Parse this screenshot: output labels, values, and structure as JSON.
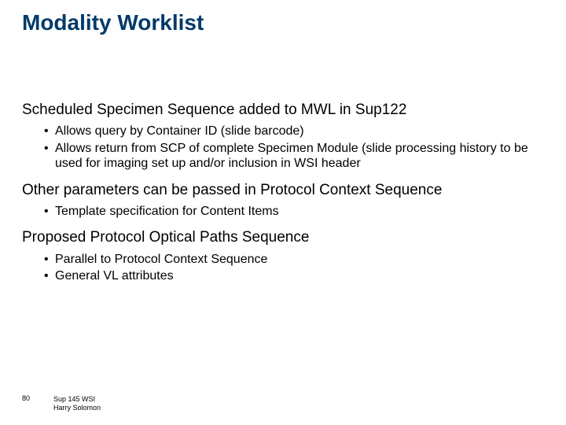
{
  "title": "Modality Worklist",
  "sections": [
    {
      "para": "Scheduled Specimen Sequence added to MWL in Sup122",
      "bullets": [
        "Allows query by Container ID (slide barcode)",
        "Allows return from SCP of complete Specimen Module (slide processing history to be used for imaging set up and/or inclusion in WSI header"
      ]
    },
    {
      "para": "Other parameters can be passed in Protocol Context Sequence",
      "bullets": [
        "Template specification for Content Items"
      ]
    },
    {
      "para": "Proposed Protocol Optical Paths Sequence",
      "bullets": [
        "Parallel to  Protocol Context Sequence",
        "General VL attributes"
      ]
    }
  ],
  "footer": {
    "page": "80",
    "line1": "Sup 145 WSI",
    "line2": "Harry Solomon"
  },
  "colors": {
    "title": "#003a6a",
    "text": "#000000",
    "background": "#ffffff"
  },
  "fonts": {
    "title_size": 28,
    "para_size": 19,
    "bullet_size": 16,
    "footer_size": 9
  }
}
